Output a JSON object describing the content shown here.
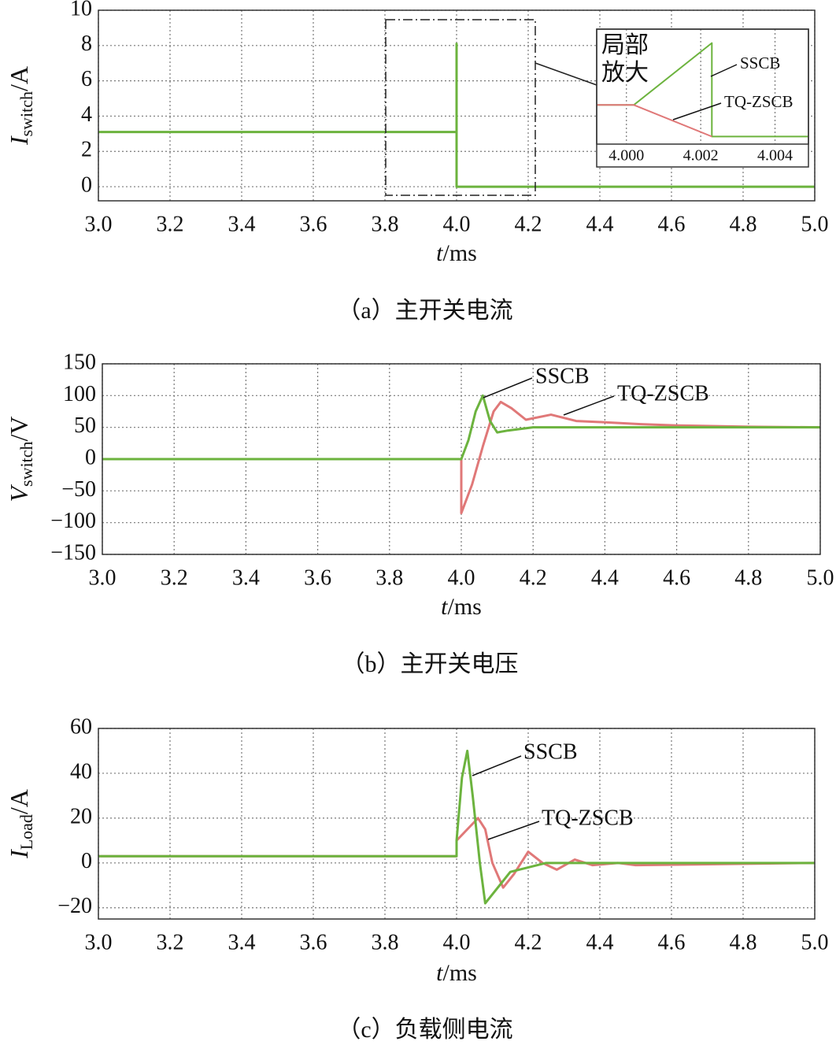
{
  "chart_data": [
    {
      "type": "line",
      "y_label": [
        "I",
        "switch",
        "/A"
      ],
      "x_label": [
        "t",
        "/ms"
      ],
      "caption": "（a）主开关电流",
      "xlim": [
        3,
        5
      ],
      "xticks": [
        {
          "value": 3,
          "label": "3.0"
        },
        3.2,
        3.4,
        3.6,
        3.8,
        {
          "value": 4,
          "label": "4.0"
        },
        4.2,
        4.4,
        4.6,
        4.8,
        {
          "value": 5,
          "label": "5.0"
        }
      ],
      "ylim": [
        -0.8,
        10
      ],
      "yticks": [
        0,
        2,
        4,
        6,
        8,
        10
      ],
      "grid": true,
      "series": [
        {
          "color": "#6cb33e",
          "x": [
            3,
            4,
            4,
            4,
            5
          ],
          "values": [
            3.1,
            3.1,
            8.1,
            0,
            0
          ]
        }
      ],
      "inset": {
        "type": "line",
        "title": [
          "局部",
          "放大"
        ],
        "xlim": [
          3.9992,
          4.0049
        ],
        "xticks": [
          {
            "value": 4.0,
            "label": "4.000"
          },
          {
            "value": 4.002,
            "label": "4.002"
          },
          {
            "value": 4.004,
            "label": "4.004"
          }
        ],
        "ylim": [
          0,
          9.1
        ],
        "grid": true,
        "series": [
          {
            "name": "SSCB",
            "color": "#6cb33e",
            "x": [
              3.9992,
              4.0002,
              4.0023,
              4.0023,
              4.0049
            ],
            "values": [
              3.1,
              3.1,
              8.0,
              0.6,
              0.6
            ]
          },
          {
            "name": "TQ-ZSCB",
            "color": "#e07878",
            "x": [
              3.9992,
              4.0002,
              4.0023
            ],
            "values": [
              3.1,
              3.1,
              0.6
            ]
          }
        ]
      }
    },
    {
      "type": "line",
      "y_label": [
        "V",
        "switch",
        "/V"
      ],
      "x_label": [
        "t",
        "/ms"
      ],
      "caption": "（b）主开关电压",
      "xlim": [
        3,
        5
      ],
      "xticks": [
        {
          "value": 3,
          "label": "3.0"
        },
        3.2,
        3.4,
        3.6,
        3.8,
        {
          "value": 4,
          "label": "4.0"
        },
        4.2,
        4.4,
        4.6,
        4.8,
        {
          "value": 5,
          "label": "5.0"
        }
      ],
      "ylim": [
        -150,
        150
      ],
      "yticks": [
        {
          "value": -150,
          "label": "−150"
        },
        {
          "value": -100,
          "label": "−100"
        },
        {
          "value": -50,
          "label": "−50"
        },
        0,
        50,
        100,
        150
      ],
      "grid": true,
      "series": [
        {
          "name": "TQ-ZSCB",
          "color": "#e07878",
          "x": [
            3,
            4.0,
            4.0,
            4.03,
            4.06,
            4.09,
            4.11,
            4.14,
            4.18,
            4.25,
            4.32,
            4.4,
            4.5,
            4.6,
            4.8,
            5
          ],
          "values": [
            0,
            0,
            -85,
            -40,
            20,
            75,
            90,
            80,
            62,
            70,
            60,
            58,
            55,
            53,
            51,
            50
          ]
        },
        {
          "name": "SSCB",
          "color": "#6cb33e",
          "x": [
            3,
            4.0,
            4.02,
            4.04,
            4.06,
            4.08,
            4.1,
            4.13,
            4.2,
            5
          ],
          "values": [
            0,
            0,
            30,
            75,
            100,
            60,
            42,
            45,
            50,
            50
          ]
        }
      ]
    },
    {
      "type": "line",
      "y_label": [
        "I",
        "Load",
        "/A"
      ],
      "x_label": [
        "t",
        "/ms"
      ],
      "caption": "（c）负载侧电流",
      "xlim": [
        3,
        5
      ],
      "xticks": [
        {
          "value": 3,
          "label": "3.0"
        },
        3.2,
        3.4,
        3.6,
        3.8,
        {
          "value": 4,
          "label": "4.0"
        },
        4.2,
        4.4,
        4.6,
        4.8,
        {
          "value": 5,
          "label": "5.0"
        }
      ],
      "ylim": [
        -25,
        60
      ],
      "yticks": [
        {
          "value": -20,
          "label": "−20"
        },
        0,
        20,
        40,
        60
      ],
      "grid": true,
      "series": [
        {
          "name": "TQ-ZSCB",
          "color": "#e07878",
          "x": [
            3,
            4.0,
            4.0,
            4.03,
            4.06,
            4.08,
            4.1,
            4.13,
            4.16,
            4.2,
            4.24,
            4.28,
            4.33,
            4.38,
            4.45,
            4.5,
            5
          ],
          "values": [
            3,
            3,
            10,
            15,
            20,
            15,
            0,
            -11,
            -5,
            5,
            0,
            -3,
            1.5,
            -1,
            0,
            -1,
            0
          ]
        },
        {
          "name": "SSCB",
          "color": "#6cb33e",
          "x": [
            3,
            4.0,
            4.0,
            4.015,
            4.03,
            4.045,
            4.065,
            4.08,
            4.1,
            4.15,
            4.25,
            5
          ],
          "values": [
            3,
            3,
            10,
            38,
            50,
            30,
            0,
            -18,
            -14,
            -4,
            0,
            0
          ]
        }
      ]
    }
  ]
}
